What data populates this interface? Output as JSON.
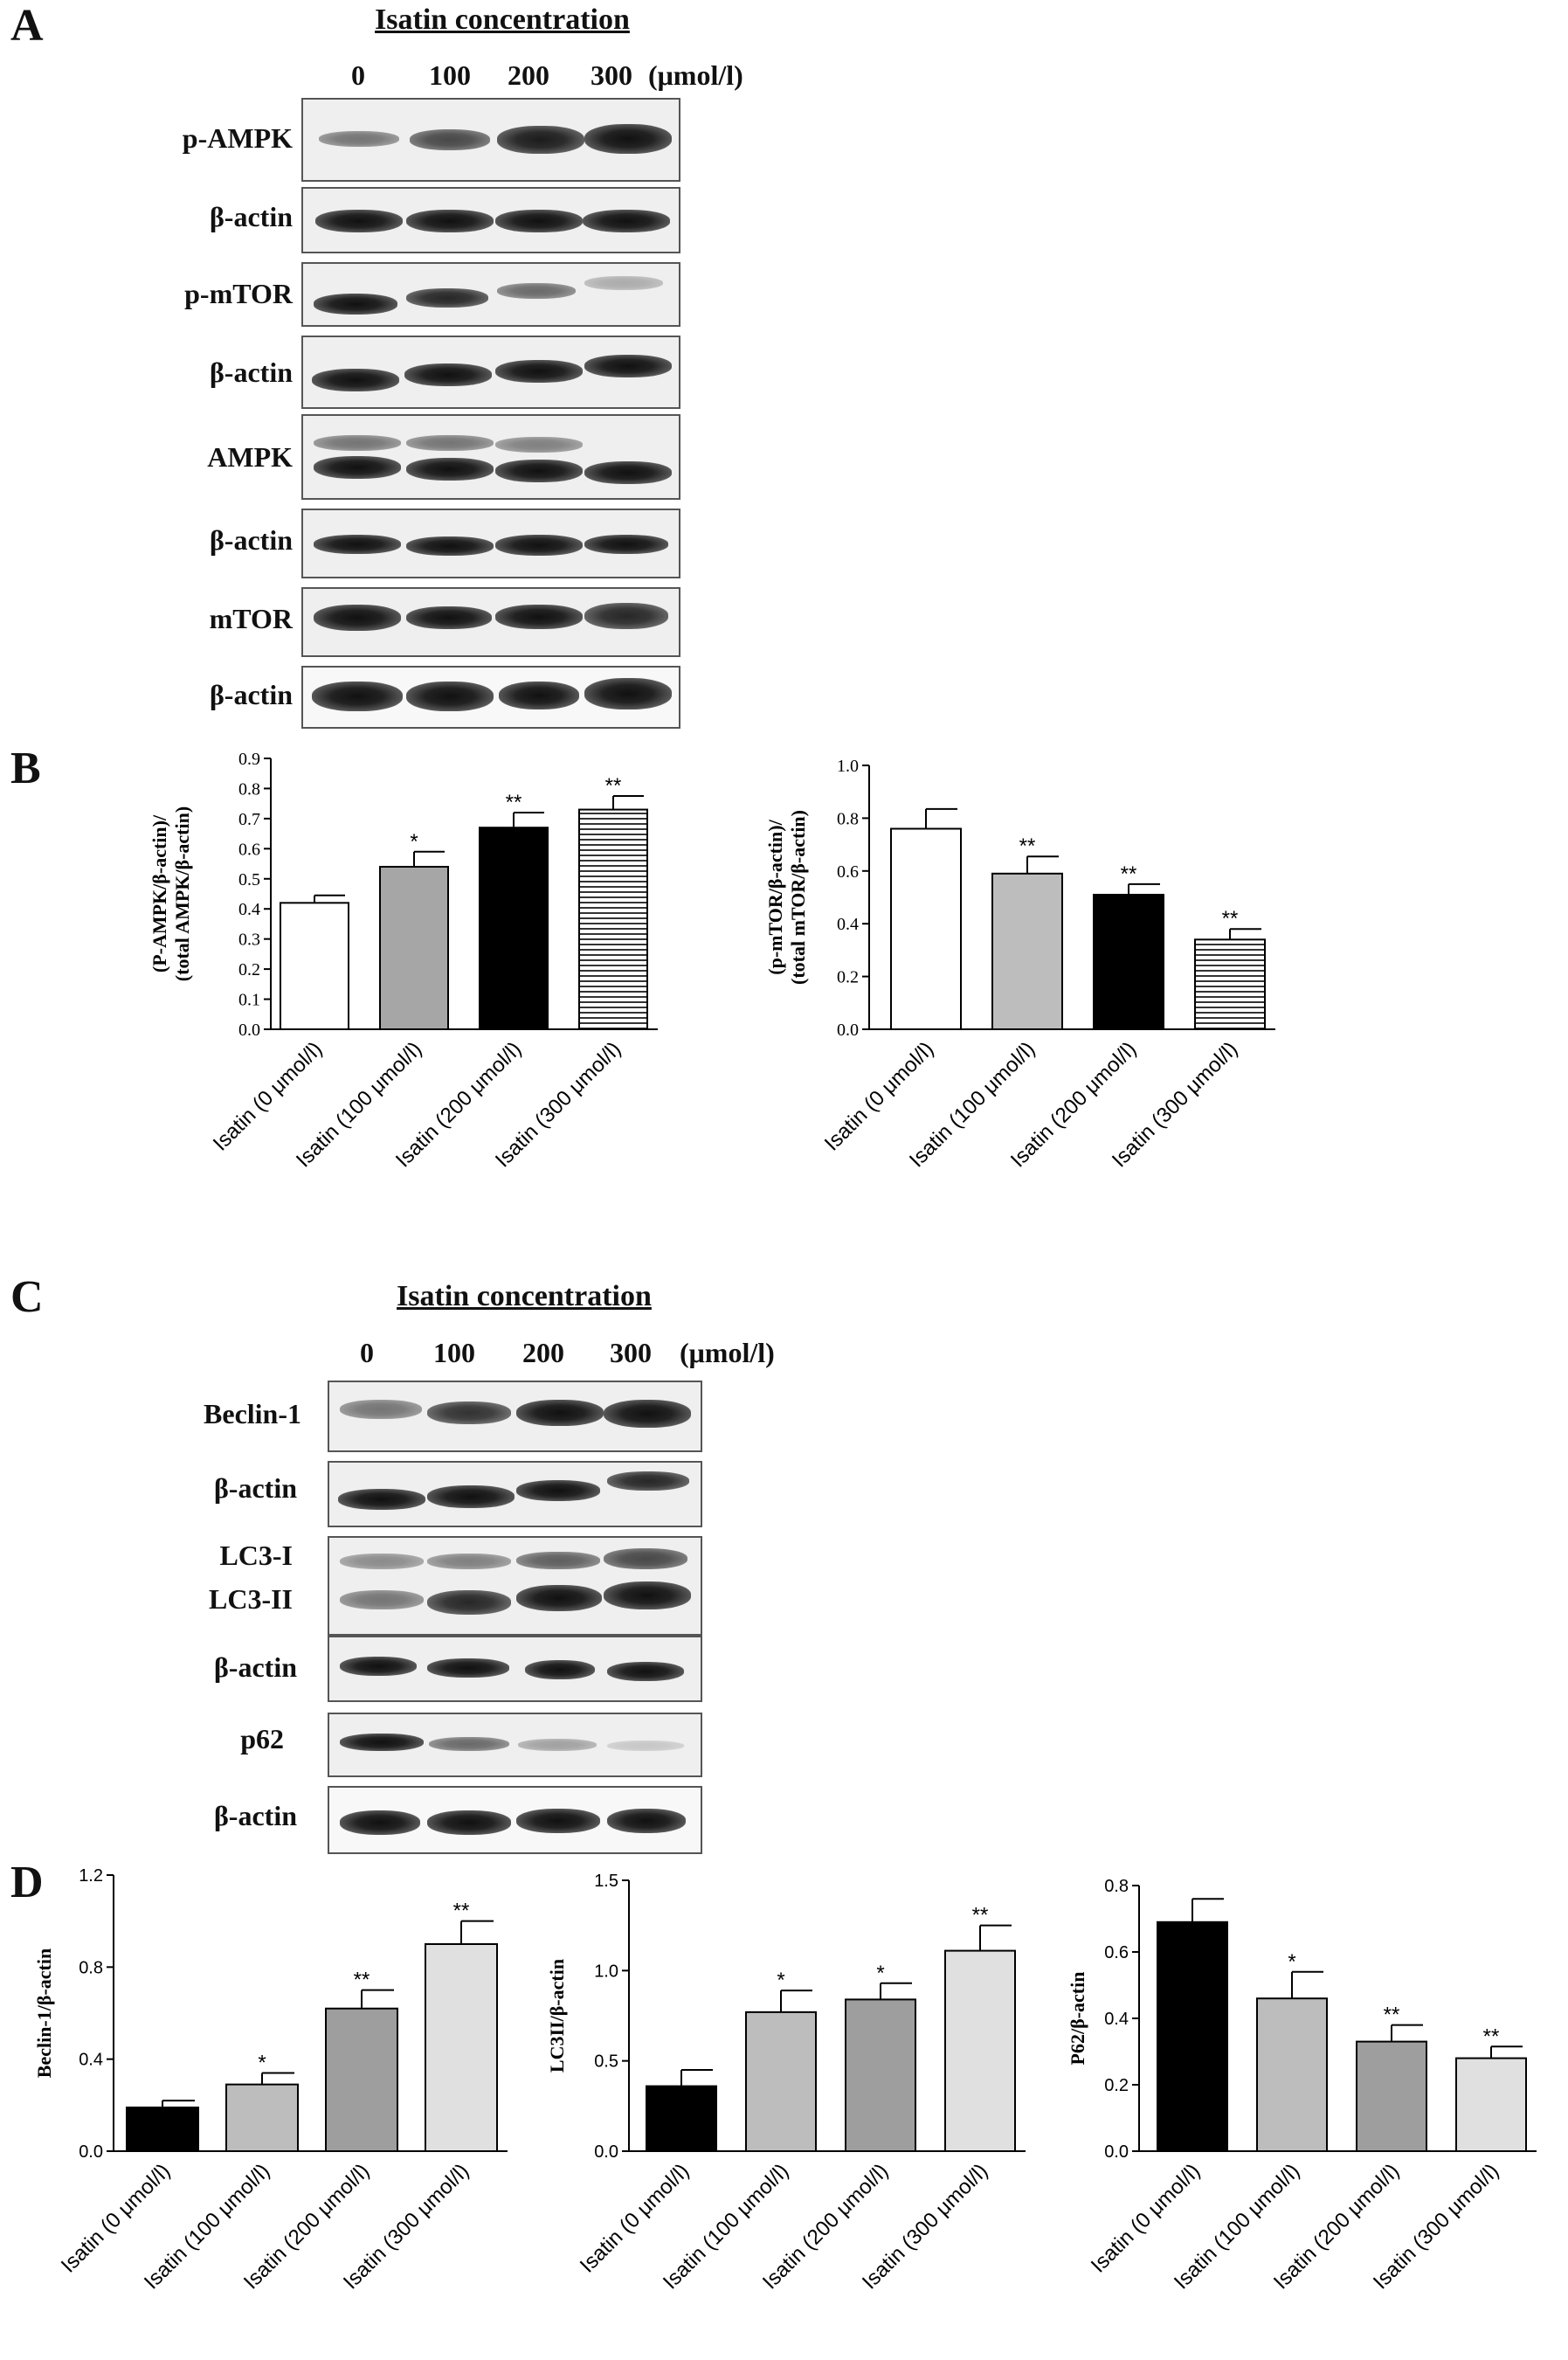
{
  "panel_labels": {
    "a": "A",
    "b": "B",
    "c": "C",
    "d": "D"
  },
  "blot_a": {
    "title": "Isatin concentration",
    "lanes": [
      "0",
      "100",
      "200",
      "300"
    ],
    "unit": "(μmol/l)",
    "rows": [
      "p-AMPK",
      "β-actin",
      "p-mTOR",
      "β-actin",
      "AMPK",
      "β-actin",
      "mTOR",
      "β-actin"
    ]
  },
  "blot_c": {
    "title": "Isatin concentration",
    "lanes": [
      "0",
      "100",
      "200",
      "300"
    ],
    "unit": "(μmol/l)",
    "rows": [
      "Beclin-1",
      "β-actin",
      "LC3-I",
      "LC3-II",
      "β-actin",
      "p62",
      "β-actin"
    ]
  },
  "chart_data": [
    {
      "type": "bar",
      "categories": [
        "Isatin (0 μmol/l)",
        "Isatin (100 μmol/l)",
        "Isatin (200 μmol/l)",
        "Isatin (300 μmol/l)"
      ],
      "values": [
        0.42,
        0.54,
        0.67,
        0.73
      ],
      "errors": [
        0.025,
        0.05,
        0.05,
        0.045
      ],
      "significance": [
        "",
        "*",
        "**",
        "**"
      ],
      "fills": [
        "white",
        "#a6a6a6",
        "#000000",
        "hlines"
      ],
      "ylabel": [
        "(P-AMPK/β-actin)/",
        "(total AMPK/β-actin)"
      ],
      "ylim": [
        0,
        0.9
      ],
      "yticks": [
        "0.0",
        "0.1",
        "0.2",
        "0.3",
        "0.4",
        "0.5",
        "0.6",
        "0.7",
        "0.8",
        "0.9"
      ]
    },
    {
      "type": "bar",
      "categories": [
        "Isatin (0 μmol/l)",
        "Isatin (100 μmol/l)",
        "Isatin (200 μmol/l)",
        "Isatin (300 μmol/l)"
      ],
      "values": [
        0.76,
        0.59,
        0.51,
        0.34
      ],
      "errors": [
        0.075,
        0.065,
        0.04,
        0.04
      ],
      "significance": [
        "",
        "**",
        "**",
        "**"
      ],
      "fills": [
        "white",
        "#bdbdbd",
        "#000000",
        "hlines"
      ],
      "ylabel": [
        "(p-mTOR/β-actin)/",
        "(total mTOR/β-actin)"
      ],
      "ylim": [
        0,
        1.0
      ],
      "yticks": [
        "0.0",
        "0.2",
        "0.4",
        "0.6",
        "0.8",
        "1.0"
      ]
    },
    {
      "type": "bar",
      "categories": [
        "Isatin (0 μmol/l)",
        "Isatin (100 μmol/l)",
        "Isatin (200 μmol/l)",
        "Isatin (300 μmol/l)"
      ],
      "values": [
        0.19,
        0.29,
        0.62,
        0.9
      ],
      "errors": [
        0.03,
        0.05,
        0.08,
        0.1
      ],
      "significance": [
        "",
        "*",
        "**",
        "**"
      ],
      "fills": [
        "#000000",
        "#bdbdbd",
        "#9e9e9e",
        "#e0e0e0"
      ],
      "ylabel": [
        "Beclin-1/β-actin"
      ],
      "ylim": [
        0,
        1.2
      ],
      "yticks": [
        "0.0",
        "0.4",
        "0.8",
        "1.2"
      ]
    },
    {
      "type": "bar",
      "categories": [
        "Isatin (0 μmol/l)",
        "Isatin (100 μmol/l)",
        "Isatin (200 μmol/l)",
        "Isatin (300 μmol/l)"
      ],
      "values": [
        0.36,
        0.77,
        0.84,
        1.11
      ],
      "errors": [
        0.09,
        0.12,
        0.09,
        0.14
      ],
      "significance": [
        "",
        "*",
        "*",
        "**"
      ],
      "fills": [
        "#000000",
        "#bdbdbd",
        "#9e9e9e",
        "#e0e0e0"
      ],
      "ylabel": [
        "LC3II/β-actin"
      ],
      "ylim": [
        0,
        1.5
      ],
      "yticks": [
        "0.0",
        "0.5",
        "1.0",
        "1.5"
      ]
    },
    {
      "type": "bar",
      "categories": [
        "Isatin (0 μmol/l)",
        "Isatin (100 μmol/l)",
        "Isatin (200 μmol/l)",
        "Isatin (300 μmol/l)"
      ],
      "values": [
        0.69,
        0.46,
        0.33,
        0.28
      ],
      "errors": [
        0.07,
        0.08,
        0.05,
        0.035
      ],
      "significance": [
        "",
        "*",
        "**",
        "**"
      ],
      "fills": [
        "#000000",
        "#bdbdbd",
        "#9e9e9e",
        "#e0e0e0"
      ],
      "ylabel": [
        "P62/β-actin"
      ],
      "ylim": [
        0,
        0.8
      ],
      "yticks": [
        "0.0",
        "0.2",
        "0.4",
        "0.6",
        "0.8"
      ]
    }
  ]
}
